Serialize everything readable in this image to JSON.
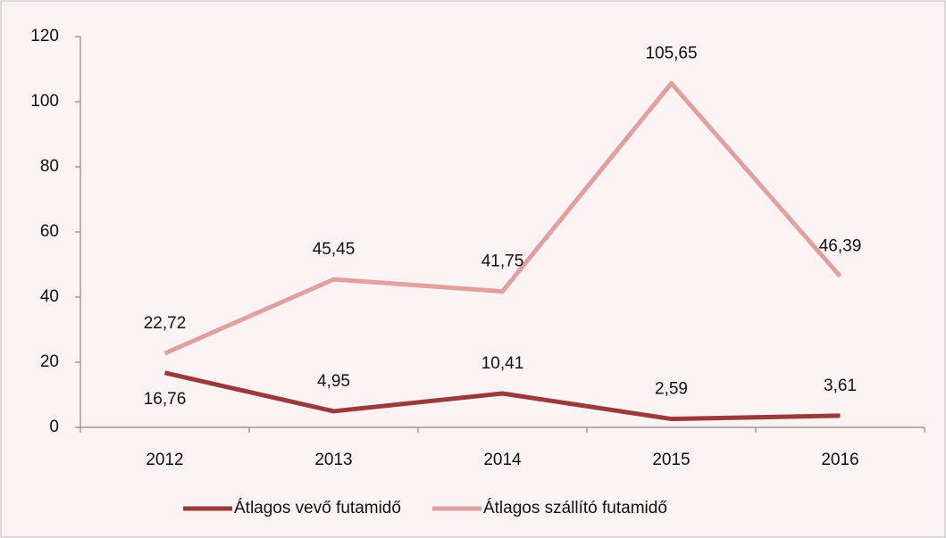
{
  "chart_data": {
    "type": "line",
    "categories": [
      "2012",
      "2013",
      "2014",
      "2015",
      "2016"
    ],
    "series": [
      {
        "name": "Átlagos vevő futamidő",
        "color": "#9b3a3a",
        "values": [
          16.76,
          4.95,
          10.41,
          2.59,
          3.61
        ],
        "value_labels": [
          "16,76",
          "4,95",
          "10,41",
          "2,59",
          "3,61"
        ]
      },
      {
        "name": "Átlagos szállító futamidő",
        "color": "#e0a0a0",
        "values": [
          22.72,
          45.45,
          41.75,
          105.65,
          46.39
        ],
        "value_labels": [
          "22,72",
          "45,45",
          "41,75",
          "105,65",
          "46,39"
        ]
      }
    ],
    "ylim": [
      0,
      120
    ],
    "yticks": [
      0,
      20,
      40,
      60,
      80,
      100,
      120
    ],
    "legend": "bottom"
  }
}
